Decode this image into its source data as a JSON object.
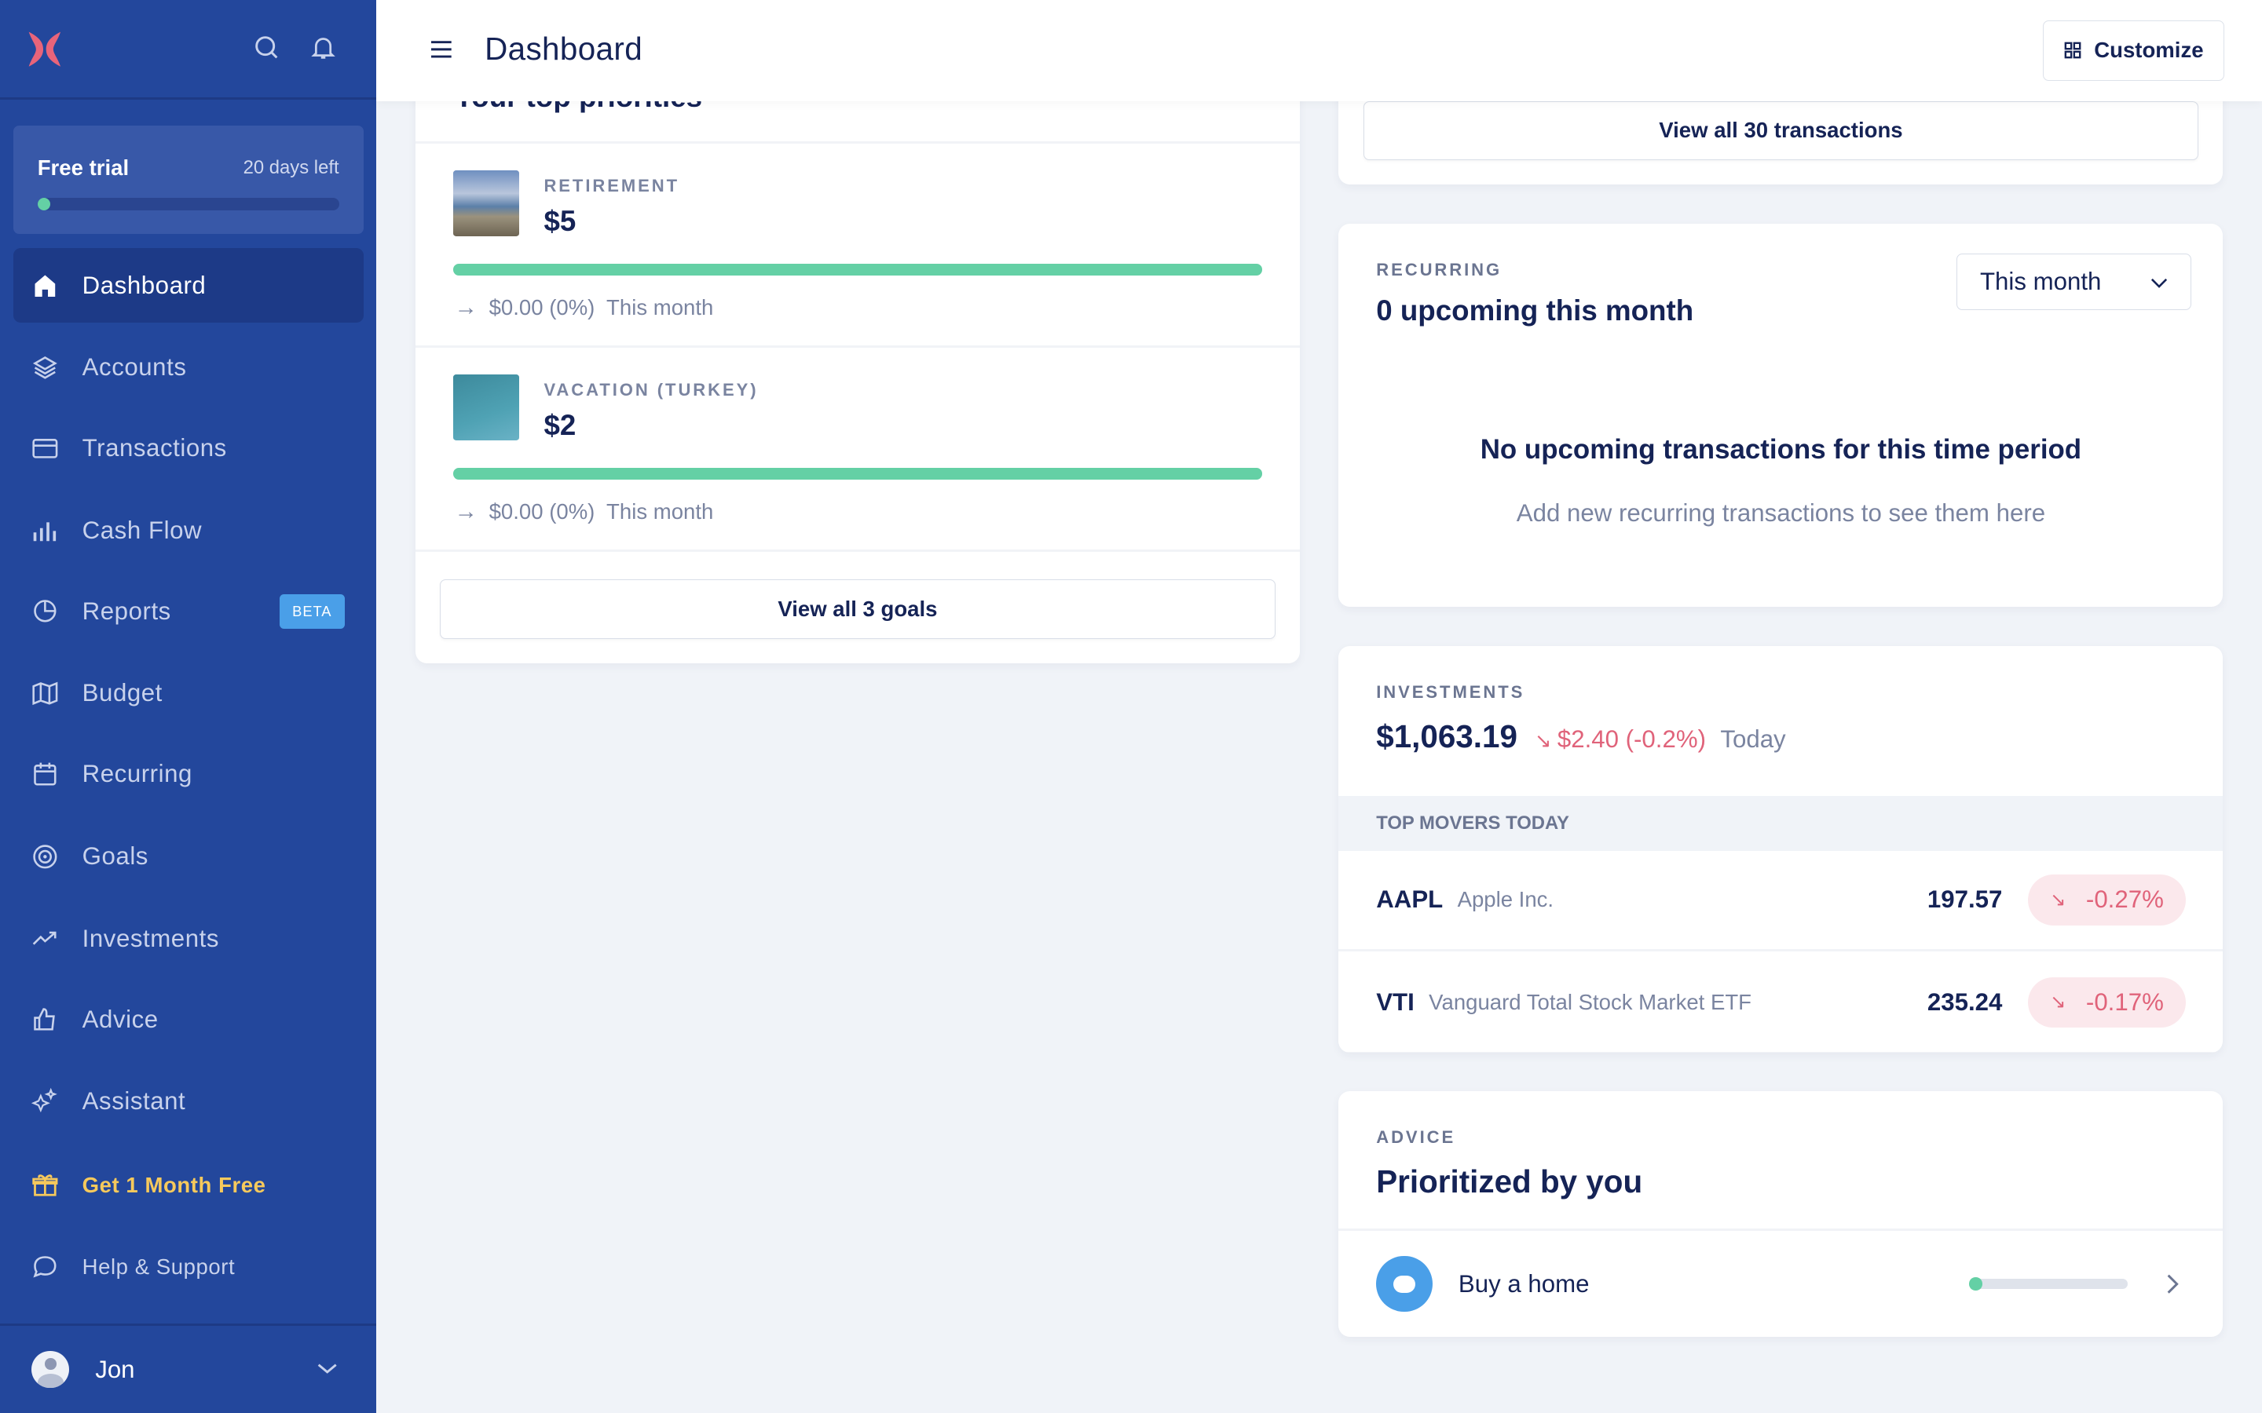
{
  "colors": {
    "sidebar": "#23479c",
    "active": "#1d3a87",
    "navy": "#152356",
    "muted": "#7a84a0",
    "green": "#64d0a5",
    "red": "#e0637a",
    "promo": "#f6c95c",
    "logo": "#e8647a"
  },
  "sidebar": {
    "trial": {
      "label": "Free trial",
      "days_left": "20 days left",
      "progress": 0.03
    },
    "items": [
      {
        "label": "Dashboard",
        "icon": "home-icon",
        "active": true
      },
      {
        "label": "Accounts",
        "icon": "layers-icon"
      },
      {
        "label": "Transactions",
        "icon": "credit-card-icon"
      },
      {
        "label": "Cash Flow",
        "icon": "bar-chart-icon"
      },
      {
        "label": "Reports",
        "icon": "pie-chart-icon",
        "badge": "BETA"
      },
      {
        "label": "Budget",
        "icon": "map-icon"
      },
      {
        "label": "Recurring",
        "icon": "calendar-icon"
      },
      {
        "label": "Goals",
        "icon": "target-icon"
      },
      {
        "label": "Investments",
        "icon": "trending-up-icon"
      },
      {
        "label": "Advice",
        "icon": "thumbs-up-icon"
      },
      {
        "label": "Assistant",
        "icon": "sparkles-icon"
      },
      {
        "label": "Get 1 Month Free",
        "icon": "gift-icon"
      },
      {
        "label": "Help & Support",
        "icon": "chat-icon"
      }
    ],
    "user": {
      "name": "Jon"
    }
  },
  "header": {
    "title": "Dashboard",
    "customize": "Customize"
  },
  "goals": {
    "title": "Your top priorities",
    "items": [
      {
        "category": "RETIREMENT",
        "amount": "$5",
        "progress": 1.0,
        "change": "$0.00 (0%)",
        "period": "This month"
      },
      {
        "category": "VACATION (TURKEY)",
        "amount": "$2",
        "progress": 1.0,
        "change": "$0.00 (0%)",
        "period": "This month"
      }
    ],
    "view_all": "View all 3 goals"
  },
  "transactions": {
    "view_all": "View all 30 transactions"
  },
  "recurring": {
    "eyebrow": "RECURRING",
    "title": "0 upcoming this month",
    "period": "This month",
    "empty_title": "No upcoming transactions for this time period",
    "empty_sub": "Add new recurring transactions to see them here"
  },
  "investments": {
    "eyebrow": "INVESTMENTS",
    "value": "$1,063.19",
    "change": "$2.40 (-0.2%)",
    "period": "Today",
    "movers_title": "TOP MOVERS TODAY",
    "movers": [
      {
        "ticker": "AAPL",
        "name": "Apple Inc.",
        "price": "197.57",
        "change": "-0.27%"
      },
      {
        "ticker": "VTI",
        "name": "Vanguard Total Stock Market ETF",
        "price": "235.24",
        "change": "-0.17%"
      }
    ]
  },
  "advice": {
    "eyebrow": "ADVICE",
    "title": "Prioritized by you",
    "items": [
      {
        "label": "Buy a home",
        "progress": 0.03
      }
    ]
  }
}
